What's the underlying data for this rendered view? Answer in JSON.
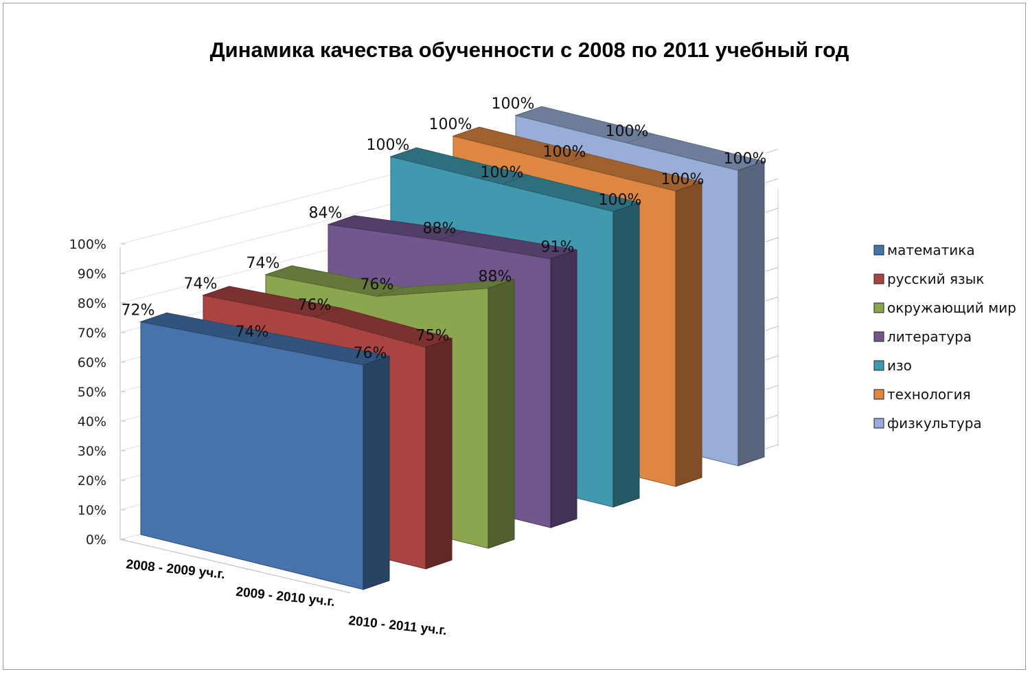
{
  "chart_data": {
    "type": "area",
    "title": "Динамика качества обученности с 2008 по 2011 учебный год",
    "categories": [
      "2008 - 2009 уч.г.",
      "2009 - 2010 уч.г.",
      "2010 - 2011 уч.г."
    ],
    "ylim": [
      0,
      100
    ],
    "y_ticks": [
      "0%",
      "10%",
      "20%",
      "30%",
      "40%",
      "50%",
      "60%",
      "70%",
      "80%",
      "90%",
      "100%"
    ],
    "value_suffix": "%",
    "grid": true,
    "legend_position": "right",
    "series": [
      {
        "name": "математика",
        "values": [
          72,
          74,
          76
        ],
        "color": "#4673AC"
      },
      {
        "name": "русский язык",
        "values": [
          74,
          76,
          75
        ],
        "color": "#AA4441"
      },
      {
        "name": "окружающий мир",
        "values": [
          74,
          76,
          88
        ],
        "color": "#8BA64F"
      },
      {
        "name": "литература",
        "values": [
          84,
          88,
          91
        ],
        "color": "#72578F"
      },
      {
        "name": "изо",
        "values": [
          100,
          100,
          100
        ],
        "color": "#4199B0"
      },
      {
        "name": "технология",
        "values": [
          100,
          100,
          100
        ],
        "color": "#DE8742"
      },
      {
        "name": "физкультура",
        "values": [
          100,
          100,
          100
        ],
        "color": "#98AED6"
      }
    ]
  }
}
